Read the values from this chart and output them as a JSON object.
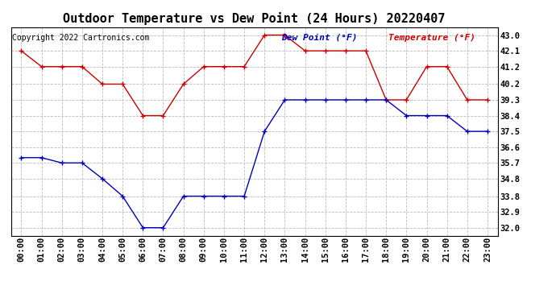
{
  "title": "Outdoor Temperature vs Dew Point (24 Hours) 20220407",
  "copyright_text": "Copyright 2022 Cartronics.com",
  "legend_dew": "Dew Point (°F)",
  "legend_temp": "Temperature (°F)",
  "hours": [
    "00:00",
    "01:00",
    "02:00",
    "03:00",
    "04:00",
    "05:00",
    "06:00",
    "07:00",
    "08:00",
    "09:00",
    "10:00",
    "11:00",
    "12:00",
    "13:00",
    "14:00",
    "15:00",
    "16:00",
    "17:00",
    "18:00",
    "19:00",
    "20:00",
    "21:00",
    "22:00",
    "23:00"
  ],
  "temperature": [
    42.1,
    41.2,
    41.2,
    41.2,
    40.2,
    40.2,
    38.4,
    38.4,
    40.2,
    41.2,
    41.2,
    41.2,
    43.0,
    43.0,
    42.1,
    42.1,
    42.1,
    42.1,
    39.3,
    39.3,
    41.2,
    41.2,
    39.3,
    39.3
  ],
  "dew_point": [
    36.0,
    36.0,
    35.7,
    35.7,
    34.8,
    33.8,
    32.0,
    32.0,
    33.8,
    33.8,
    33.8,
    33.8,
    37.5,
    39.3,
    39.3,
    39.3,
    39.3,
    39.3,
    39.3,
    38.4,
    38.4,
    38.4,
    37.5,
    37.5
  ],
  "yticks": [
    32.0,
    32.9,
    33.8,
    34.8,
    35.7,
    36.6,
    37.5,
    38.4,
    39.3,
    40.2,
    41.2,
    42.1,
    43.0
  ],
  "ylim": [
    31.55,
    43.45
  ],
  "temp_color": "#cc0000",
  "dew_color": "#0000bb",
  "grid_color": "#bbbbbb",
  "bg_color": "#ffffff",
  "title_fontsize": 11,
  "axis_fontsize": 7.5,
  "copyright_fontsize": 7,
  "legend_fontsize": 8
}
